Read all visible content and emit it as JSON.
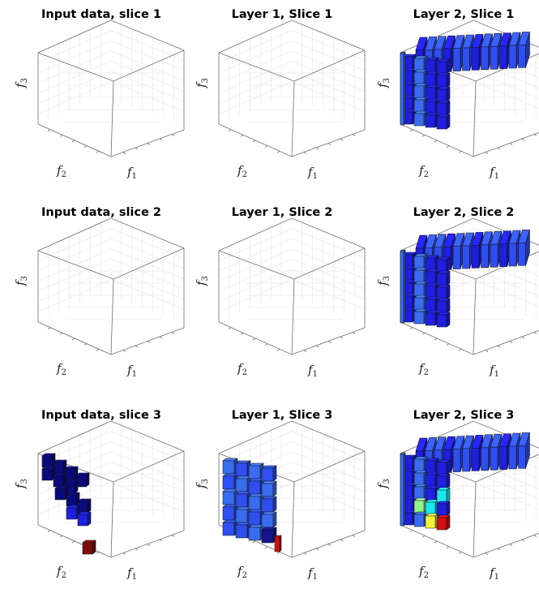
{
  "figure": {
    "panels": [
      {
        "title": "Input data, slice 1",
        "x_label": "f",
        "x_sub": "1",
        "y_label": "f",
        "y_sub": "2",
        "z_label": "f",
        "z_sub": "3"
      },
      {
        "title": "Layer 1, Slice 1",
        "x_label": "f",
        "x_sub": "1",
        "y_label": "f",
        "y_sub": "2",
        "z_label": "f",
        "z_sub": "3"
      },
      {
        "title": "Layer 2, Slice 1",
        "x_label": "f",
        "x_sub": "1",
        "y_label": "f",
        "y_sub": "2",
        "z_label": "f",
        "z_sub": "3"
      },
      {
        "title": "Input data, slice 2",
        "x_label": "f",
        "x_sub": "1",
        "y_label": "f",
        "y_sub": "2",
        "z_label": "f",
        "z_sub": "3"
      },
      {
        "title": "Layer 1, Slice 2",
        "x_label": "f",
        "x_sub": "1",
        "y_label": "f",
        "y_sub": "2",
        "z_label": "f",
        "z_sub": "3"
      },
      {
        "title": "Layer 2, Slice 2",
        "x_label": "f",
        "x_sub": "1",
        "y_label": "f",
        "y_sub": "2",
        "z_label": "f",
        "z_sub": "3"
      },
      {
        "title": "Input data, slice 3",
        "x_label": "f",
        "x_sub": "1",
        "y_label": "f",
        "y_sub": "2",
        "z_label": "f",
        "z_sub": "3"
      },
      {
        "title": "Layer 1, Slice 3",
        "x_label": "f",
        "x_sub": "1",
        "y_label": "f",
        "y_sub": "2",
        "z_label": "f",
        "z_sub": "3"
      },
      {
        "title": "Layer 2, Slice 3",
        "x_label": "f",
        "x_sub": "1",
        "y_label": "f",
        "y_sub": "2",
        "z_label": "f",
        "z_sub": "3"
      }
    ],
    "colors": {
      "navy": "#0a0a7a",
      "dark_blue": "#14148c",
      "blue": "#1f1fe0",
      "medium_blue": "#2f4ff0",
      "light_blue": "#3a6cf0",
      "cyan": "#19e6f0",
      "light_green": "#8ff58f",
      "yellow": "#f5f53a",
      "dark_red": "#7a0d0d",
      "red": "#d01010"
    }
  }
}
